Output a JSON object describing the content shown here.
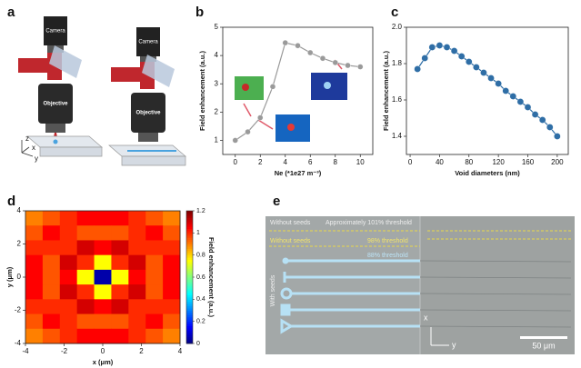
{
  "panel_a": {
    "label": "a",
    "camera_labels": [
      "Camera",
      "Camera"
    ],
    "objective_labels": [
      "Objective",
      "Objective"
    ],
    "axis_labels": [
      "z",
      "x",
      "y"
    ]
  },
  "chart_data": [
    {
      "type": "line",
      "label": "b",
      "ylabel": "Field enhancement (a.u.)",
      "xlabel": "Ne (*1e27 m⁻³)",
      "series": [
        {
          "color": "#9a9a9a",
          "x": [
            0,
            1,
            2,
            3,
            4,
            5,
            6,
            7,
            8,
            9,
            10
          ],
          "values": [
            1.0,
            1.3,
            1.8,
            2.9,
            4.45,
            4.35,
            4.1,
            3.9,
            3.75,
            3.65,
            3.6
          ]
        }
      ],
      "xlim": [
        -1,
        11
      ],
      "xticks": [
        0,
        2,
        4,
        6,
        8,
        10
      ],
      "ylim": [
        0.5,
        5
      ],
      "yticks": [
        1,
        2,
        3,
        4,
        5
      ]
    },
    {
      "type": "line",
      "label": "c",
      "ylabel": "Field enhancement (a.u.)",
      "xlabel": "Void diameters (nm)",
      "series": [
        {
          "color": "#2f6ea6",
          "x": [
            10,
            20,
            30,
            40,
            50,
            60,
            70,
            80,
            90,
            100,
            110,
            120,
            130,
            140,
            150,
            160,
            170,
            180,
            190,
            200
          ],
          "values": [
            1.77,
            1.83,
            1.89,
            1.9,
            1.89,
            1.87,
            1.84,
            1.81,
            1.78,
            1.75,
            1.72,
            1.69,
            1.65,
            1.62,
            1.59,
            1.56,
            1.52,
            1.49,
            1.45,
            1.4
          ]
        }
      ],
      "xlim": [
        -5,
        215
      ],
      "xticks": [
        0,
        40,
        80,
        120,
        160,
        200
      ],
      "ylim": [
        1.3,
        2.0
      ],
      "yticks": [
        1.4,
        1.6,
        1.8,
        {
          "value": 2.0,
          "label": "2.0"
        }
      ]
    },
    {
      "type": "heatmap",
      "label": "d",
      "xlabel": "x (μm)",
      "ylabel": "y (μm)",
      "colorbar_label": "Field enhancement (a.u.)",
      "xlim": [
        -4,
        4
      ],
      "ylim": [
        -4,
        4
      ],
      "xticks": [
        -4,
        -2,
        0,
        2,
        4
      ],
      "yticks": [
        -4,
        -2,
        0,
        2,
        4
      ],
      "zlim": [
        0,
        1.2
      ],
      "zticks": [
        0,
        0.2,
        0.4,
        0.6,
        0.8,
        1,
        1.2
      ],
      "colormap": "jet",
      "z": [
        [
          0.9,
          0.95,
          1.0,
          1.05,
          1.05,
          1.05,
          1.0,
          0.95,
          0.9
        ],
        [
          0.95,
          1.05,
          1.0,
          0.95,
          0.95,
          0.95,
          1.0,
          1.05,
          0.95
        ],
        [
          1.0,
          1.0,
          1.0,
          1.1,
          1.05,
          1.1,
          1.0,
          1.0,
          1.0
        ],
        [
          1.05,
          0.95,
          1.1,
          1.0,
          0.75,
          1.0,
          1.1,
          0.95,
          1.05
        ],
        [
          1.05,
          0.95,
          1.05,
          0.75,
          0.05,
          0.75,
          1.05,
          0.95,
          1.05
        ],
        [
          1.05,
          0.95,
          1.1,
          1.0,
          0.75,
          1.0,
          1.1,
          0.95,
          1.05
        ],
        [
          1.0,
          1.0,
          1.0,
          1.1,
          1.05,
          1.1,
          1.0,
          1.0,
          1.0
        ],
        [
          0.95,
          1.05,
          1.0,
          0.95,
          0.95,
          0.95,
          1.0,
          1.05,
          0.95
        ],
        [
          0.9,
          0.95,
          1.0,
          1.05,
          1.05,
          1.05,
          1.0,
          0.95,
          0.9
        ]
      ]
    }
  ],
  "panel_e": {
    "label": "e",
    "without_seeds": [
      "Without seeds",
      "Without seeds"
    ],
    "thresholds": [
      "Approximately 101%  threshold",
      "98%   threshold",
      "88%   threshold"
    ],
    "with_seeds": "With seeds",
    "axis_labels": [
      "x",
      "y"
    ],
    "scale_bar": "50 μm"
  }
}
